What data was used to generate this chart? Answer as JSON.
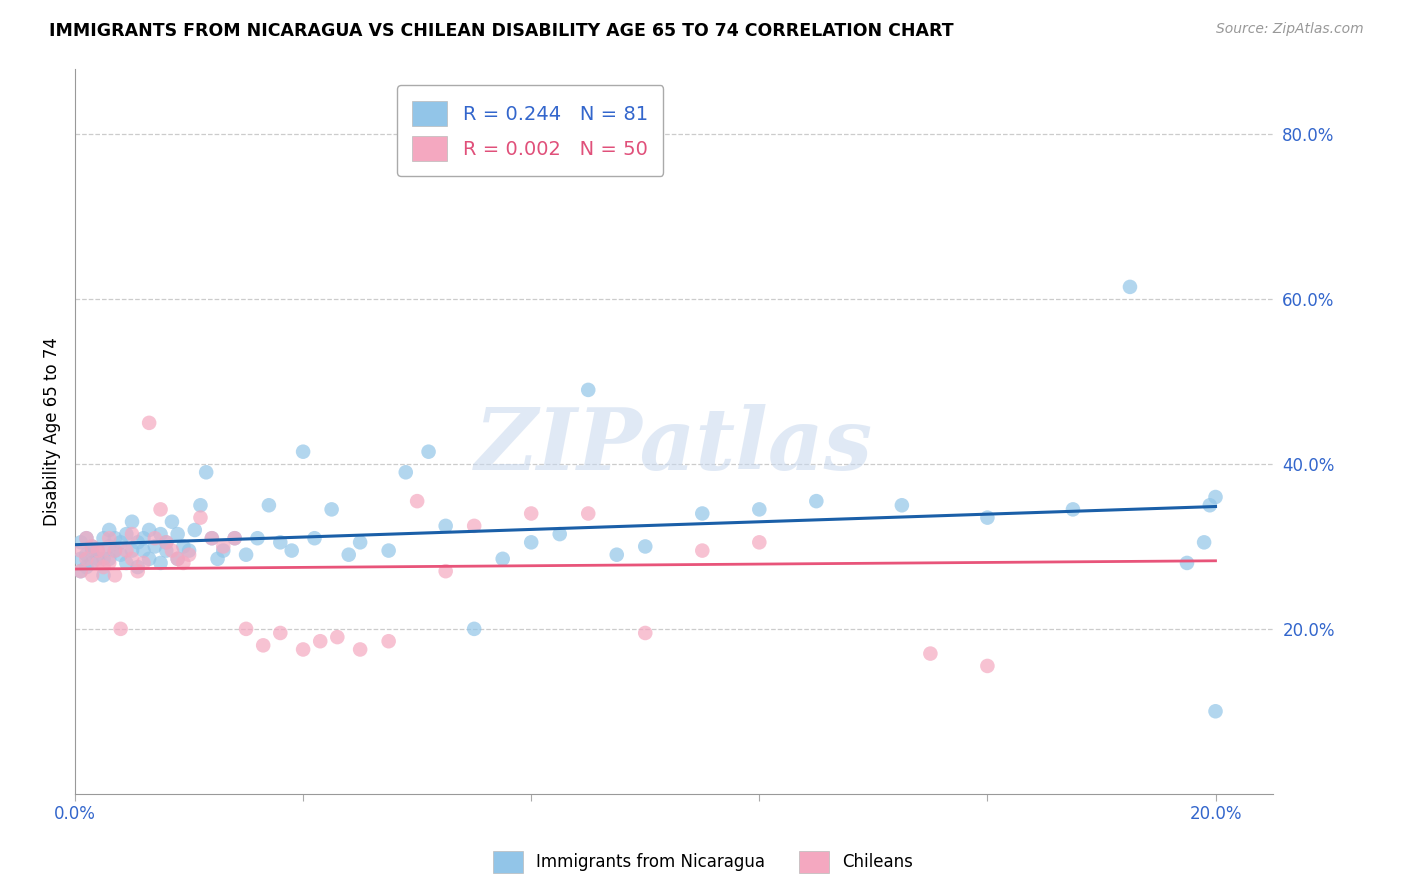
{
  "title": "IMMIGRANTS FROM NICARAGUA VS CHILEAN DISABILITY AGE 65 TO 74 CORRELATION CHART",
  "source": "Source: ZipAtlas.com",
  "ylabel_label": "Disability Age 65 to 74",
  "xlim": [
    0.0,
    0.21
  ],
  "ylim": [
    0.0,
    0.88
  ],
  "xtick_positions": [
    0.0,
    0.2
  ],
  "xtick_labels": [
    "0.0%",
    "20.0%"
  ],
  "yticks": [
    0.2,
    0.4,
    0.6,
    0.8
  ],
  "blue_color": "#92c5e8",
  "pink_color": "#f4a8c0",
  "blue_line_color": "#1a5fa8",
  "pink_line_color": "#e8547a",
  "R_blue": 0.244,
  "N_blue": 81,
  "R_pink": 0.002,
  "N_pink": 50,
  "watermark": "ZIPatlas",
  "blue_scatter_x": [
    0.001,
    0.001,
    0.001,
    0.002,
    0.002,
    0.002,
    0.003,
    0.003,
    0.003,
    0.004,
    0.004,
    0.005,
    0.005,
    0.005,
    0.006,
    0.006,
    0.006,
    0.007,
    0.007,
    0.008,
    0.008,
    0.009,
    0.009,
    0.01,
    0.01,
    0.011,
    0.011,
    0.012,
    0.012,
    0.013,
    0.013,
    0.014,
    0.015,
    0.015,
    0.016,
    0.016,
    0.017,
    0.018,
    0.018,
    0.019,
    0.02,
    0.021,
    0.022,
    0.023,
    0.024,
    0.025,
    0.026,
    0.028,
    0.03,
    0.032,
    0.034,
    0.036,
    0.038,
    0.04,
    0.042,
    0.045,
    0.048,
    0.05,
    0.055,
    0.058,
    0.062,
    0.065,
    0.07,
    0.075,
    0.08,
    0.085,
    0.09,
    0.095,
    0.1,
    0.11,
    0.12,
    0.13,
    0.145,
    0.16,
    0.175,
    0.185,
    0.195,
    0.198,
    0.199,
    0.2,
    0.2
  ],
  "blue_scatter_y": [
    0.285,
    0.305,
    0.27,
    0.29,
    0.31,
    0.275,
    0.295,
    0.28,
    0.3,
    0.285,
    0.295,
    0.31,
    0.285,
    0.265,
    0.3,
    0.32,
    0.285,
    0.295,
    0.31,
    0.29,
    0.305,
    0.28,
    0.315,
    0.295,
    0.33,
    0.305,
    0.275,
    0.31,
    0.295,
    0.32,
    0.285,
    0.3,
    0.315,
    0.28,
    0.305,
    0.295,
    0.33,
    0.285,
    0.315,
    0.3,
    0.295,
    0.32,
    0.35,
    0.39,
    0.31,
    0.285,
    0.295,
    0.31,
    0.29,
    0.31,
    0.35,
    0.305,
    0.295,
    0.415,
    0.31,
    0.345,
    0.29,
    0.305,
    0.295,
    0.39,
    0.415,
    0.325,
    0.2,
    0.285,
    0.305,
    0.315,
    0.49,
    0.29,
    0.3,
    0.34,
    0.345,
    0.355,
    0.35,
    0.335,
    0.345,
    0.615,
    0.28,
    0.305,
    0.35,
    0.1,
    0.36
  ],
  "pink_scatter_x": [
    0.001,
    0.001,
    0.002,
    0.002,
    0.003,
    0.003,
    0.004,
    0.004,
    0.005,
    0.005,
    0.006,
    0.006,
    0.007,
    0.007,
    0.008,
    0.009,
    0.01,
    0.01,
    0.011,
    0.012,
    0.013,
    0.014,
    0.015,
    0.016,
    0.017,
    0.018,
    0.019,
    0.02,
    0.022,
    0.024,
    0.026,
    0.028,
    0.03,
    0.033,
    0.036,
    0.04,
    0.043,
    0.046,
    0.05,
    0.055,
    0.06,
    0.065,
    0.07,
    0.08,
    0.09,
    0.1,
    0.11,
    0.12,
    0.15,
    0.16
  ],
  "pink_scatter_y": [
    0.295,
    0.27,
    0.31,
    0.285,
    0.3,
    0.265,
    0.295,
    0.28,
    0.275,
    0.295,
    0.31,
    0.28,
    0.295,
    0.265,
    0.2,
    0.295,
    0.285,
    0.315,
    0.27,
    0.28,
    0.45,
    0.31,
    0.345,
    0.305,
    0.295,
    0.285,
    0.28,
    0.29,
    0.335,
    0.31,
    0.3,
    0.31,
    0.2,
    0.18,
    0.195,
    0.175,
    0.185,
    0.19,
    0.175,
    0.185,
    0.355,
    0.27,
    0.325,
    0.34,
    0.34,
    0.195,
    0.295,
    0.305,
    0.17,
    0.155
  ]
}
